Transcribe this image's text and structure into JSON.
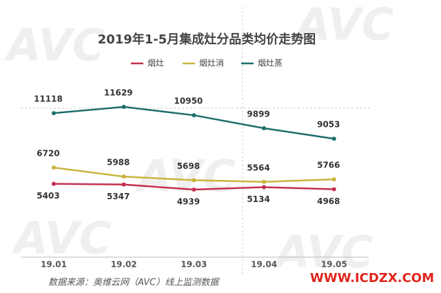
{
  "chart_data": {
    "type": "line",
    "title": "2019年1-5月集成灶分品类均价走势图",
    "categories": [
      "19.01",
      "19.02",
      "19.03",
      "19.04",
      "19.05"
    ],
    "series": [
      {
        "name": "烟灶",
        "color": "#c2304f",
        "values": [
          5403,
          5347,
          4939,
          5134,
          4968
        ]
      },
      {
        "name": "烟灶消",
        "color": "#c9b43c",
        "values": [
          6720,
          5988,
          5698,
          5564,
          5766
        ]
      },
      {
        "name": "烟灶蒸",
        "color": "#1d6e6c",
        "values": [
          11118,
          11629,
          10950,
          9899,
          9053
        ]
      }
    ],
    "source": "数据来源：奥维云网（AVC）线上监测数据",
    "watermark": "AVC",
    "site": "WWW.ICDZX.COM"
  }
}
